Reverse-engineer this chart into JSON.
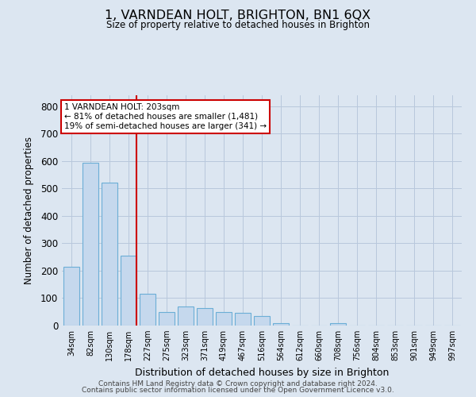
{
  "title": "1, VARNDEAN HOLT, BRIGHTON, BN1 6QX",
  "subtitle": "Size of property relative to detached houses in Brighton",
  "xlabel": "Distribution of detached houses by size in Brighton",
  "ylabel": "Number of detached properties",
  "footer_line1": "Contains HM Land Registry data © Crown copyright and database right 2024.",
  "footer_line2": "Contains public sector information licensed under the Open Government Licence v3.0.",
  "categories": [
    "34sqm",
    "82sqm",
    "130sqm",
    "178sqm",
    "227sqm",
    "275sqm",
    "323sqm",
    "371sqm",
    "419sqm",
    "467sqm",
    "516sqm",
    "564sqm",
    "612sqm",
    "660sqm",
    "708sqm",
    "756sqm",
    "804sqm",
    "853sqm",
    "901sqm",
    "949sqm",
    "997sqm"
  ],
  "values": [
    215,
    595,
    520,
    255,
    115,
    50,
    70,
    65,
    50,
    45,
    35,
    10,
    0,
    0,
    10,
    0,
    0,
    0,
    0,
    0,
    0
  ],
  "bar_color": "#c5d8ed",
  "bar_edge_color": "#6baed6",
  "annotation_title": "1 VARNDEAN HOLT: 203sqm",
  "annotation_line1": "← 81% of detached houses are smaller (1,481)",
  "annotation_line2": "19% of semi-detached houses are larger (341) →",
  "annotation_box_color": "#ffffff",
  "annotation_box_edge_color": "#cc0000",
  "vline_color": "#cc0000",
  "ylim": [
    0,
    840
  ],
  "yticks": [
    0,
    100,
    200,
    300,
    400,
    500,
    600,
    700,
    800
  ],
  "grid_color": "#b8c8dc",
  "bg_color": "#dce6f1"
}
